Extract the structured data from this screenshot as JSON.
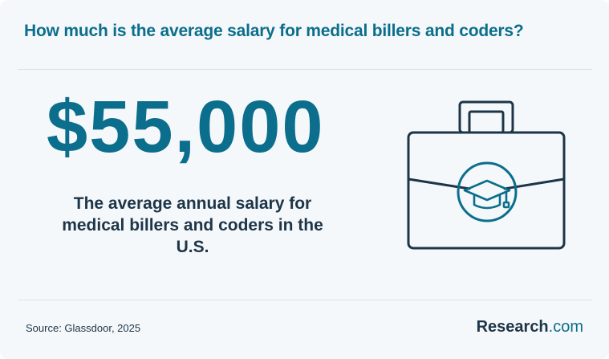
{
  "header": {
    "title": "How much is the average salary for medical billers and coders?"
  },
  "stat": {
    "value": "$55,000",
    "description": "The average annual salary for medical billers and coders in the U.S."
  },
  "footer": {
    "source": "Source: Glassdoor, 2025",
    "brand_name": "Research",
    "brand_suffix": ".com"
  },
  "icons": {
    "main": "briefcase-graduation-cap-icon"
  },
  "colors": {
    "accent": "#0b6e8c",
    "text": "#1d3548",
    "background": "#f5f8fa"
  }
}
